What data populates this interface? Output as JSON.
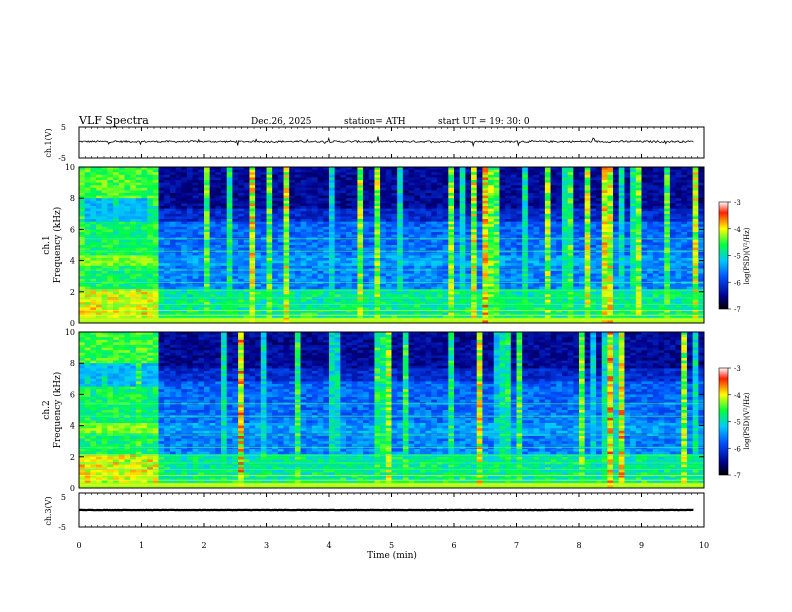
{
  "header": {
    "title": "VLF  Spectra",
    "date": "Dec.26, 2025",
    "station": "station= ATH",
    "start": "start  UT  =    19: 30: 0"
  },
  "chart_data": [
    {
      "type": "line",
      "panel": "ch1-waveform",
      "ylabel": "ch.1(V)",
      "ylim": [
        -5,
        5
      ],
      "yticks": [
        "5",
        "-5"
      ],
      "x_range": [
        0,
        9.83
      ],
      "description": "noisy waveform near +0.3 V with small spikes",
      "baseline": 0.3,
      "noise": 0.6
    },
    {
      "type": "heatmap",
      "panel": "ch1-spectrogram",
      "ylabel": "Frequency  (kHz)",
      "channel_label": "ch.1",
      "ylim": [
        0,
        10
      ],
      "yticks": [
        "0",
        "2",
        "4",
        "6",
        "8",
        "10"
      ],
      "xlim": [
        0,
        9.83
      ],
      "colorbar": {
        "label": "log(PSD)(V²/Hz)",
        "range": [
          -7,
          -3
        ],
        "ticks": [
          "-3",
          "-4",
          "-5",
          "-6",
          "-7"
        ]
      },
      "features": {
        "broadband_interval_min": [
          0,
          1.25
        ],
        "strong_band_khz": [
          3.7,
          4.3
        ],
        "dark_region_above_khz": 6.5
      }
    },
    {
      "type": "heatmap",
      "panel": "ch2-spectrogram",
      "ylabel": "Frequency  (kHz)",
      "channel_label": "ch.2",
      "ylim": [
        0,
        10
      ],
      "yticks": [
        "0",
        "2",
        "4",
        "6",
        "8",
        "10"
      ],
      "xlim": [
        0,
        9.83
      ],
      "colorbar": {
        "label": "log(PSD)(V²/Hz)",
        "range": [
          -7,
          -3
        ],
        "ticks": [
          "-3",
          "-4",
          "-5",
          "-6",
          "-7"
        ]
      },
      "features": {
        "broadband_interval_min": [
          0,
          1.25
        ],
        "strong_band_khz": [
          3.5,
          4.1
        ],
        "dark_region_above_khz": 6.8
      }
    },
    {
      "type": "line",
      "panel": "ch3-waveform",
      "ylabel": "ch.3(V)",
      "ylim": [
        -5,
        5
      ],
      "yticks": [
        "5",
        "-5"
      ],
      "x_range": [
        0,
        9.83
      ],
      "baseline": 0.0,
      "noise": 0.1
    }
  ],
  "xaxis": {
    "label": "Time  (min)",
    "ticks": [
      "0",
      "1",
      "2",
      "3",
      "4",
      "5",
      "6",
      "7",
      "8",
      "9",
      "10"
    ],
    "xlim": [
      0,
      10
    ]
  },
  "colors": {
    "low": "#000000",
    "mid_low": "#0000b0",
    "mid": "#00a0ff",
    "mid_high": "#00ff00",
    "high": "#ffff00",
    "max": "#ff0000"
  }
}
